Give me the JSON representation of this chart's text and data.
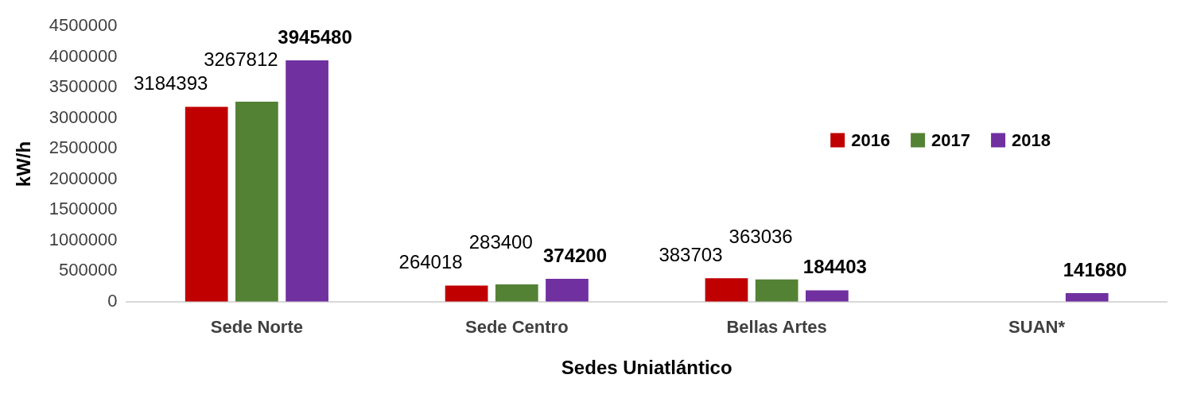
{
  "chart_data": {
    "type": "bar",
    "xlabel": "Sedes Uniatlántico",
    "ylabel": "kW/h",
    "categories": [
      "Sede Norte",
      "Sede Centro",
      "Bellas Artes",
      "SUAN*"
    ],
    "series": [
      {
        "name": "2016",
        "color": "#c00000",
        "values": [
          3184393,
          264018,
          383703,
          null
        ]
      },
      {
        "name": "2017",
        "color": "#548235",
        "values": [
          3267812,
          283400,
          363036,
          null
        ]
      },
      {
        "name": "2018",
        "color": "#7030a0",
        "values": [
          3945480,
          374200,
          184403,
          141680
        ]
      }
    ],
    "ylim": [
      0,
      4500000
    ],
    "yticks": [
      0,
      500000,
      1000000,
      1500000,
      2000000,
      2500000,
      3000000,
      3500000,
      4000000,
      4500000
    ],
    "grid": false,
    "legend": "right",
    "data_labels": true
  }
}
